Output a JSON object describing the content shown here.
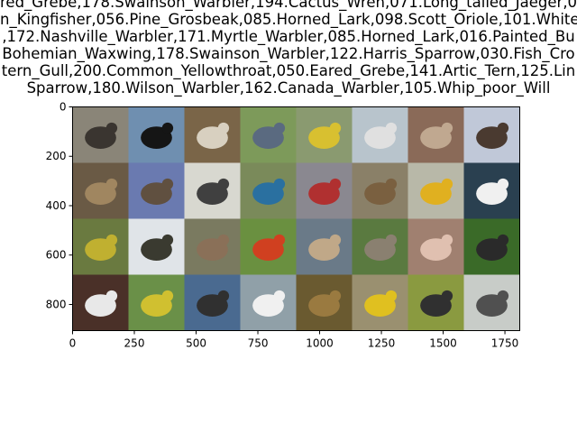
{
  "title_lines": [
    "red_Grebe,178.Swainson_Warbler,194.Cactus_Wren,071.Long_tailed_Jaeger,0",
    "n_Kingfisher,056.Pine_Grosbeak,085.Horned_Lark,098.Scott_Oriole,101.White",
    ",172.Nashville_Warbler,171.Myrtle_Warbler,085.Horned_Lark,016.Painted_Bu",
    "Bohemian_Waxwing,178.Swainson_Warbler,122.Harris_Sparrow,030.Fish_Cro",
    "tern_Gull,200.Common_Yellowthroat,050.Eared_Grebe,141.Artic_Tern,125.Lin",
    "Sparrow,180.Wilson_Warbler,162.Canada_Warbler,105.Whip_poor_Will"
  ],
  "chart_data": {
    "type": "image",
    "xlim": [
      0,
      1810
    ],
    "ylim": [
      906,
      0
    ],
    "x_ticks": [
      0,
      250,
      500,
      750,
      1000,
      1250,
      1500,
      1750
    ],
    "y_ticks": [
      0,
      200,
      400,
      600,
      800
    ],
    "grid": false,
    "grid_rows": 4,
    "grid_cols": 8,
    "tiles": [
      {
        "color": "#8a8578",
        "subject": "#3a3530"
      },
      {
        "color": "#6f8fb0",
        "subject": "#151515"
      },
      {
        "color": "#7a6548",
        "subject": "#d8d0c0"
      },
      {
        "color": "#7d9a5a",
        "subject": "#5a6a80"
      },
      {
        "color": "#8a9a70",
        "subject": "#d8c030"
      },
      {
        "color": "#b8c4cc",
        "subject": "#e0e0e0"
      },
      {
        "color": "#8a6a58",
        "subject": "#c0a890"
      },
      {
        "color": "#c0c8d8",
        "subject": "#4a3a30"
      },
      {
        "color": "#6a5a45",
        "subject": "#a08660"
      },
      {
        "color": "#6a7ab0",
        "subject": "#605040"
      },
      {
        "color": "#d8d8d0",
        "subject": "#404040"
      },
      {
        "color": "#7a8a5a",
        "subject": "#2a70a0"
      },
      {
        "color": "#8a8890",
        "subject": "#b03030"
      },
      {
        "color": "#8a8068",
        "subject": "#7a6040"
      },
      {
        "color": "#b8b8a8",
        "subject": "#e0b020"
      },
      {
        "color": "#2a4050",
        "subject": "#f0f0f0"
      },
      {
        "color": "#6a7a40",
        "subject": "#c0b030"
      },
      {
        "color": "#e0e4e8",
        "subject": "#3a3a30"
      },
      {
        "color": "#7a7a60",
        "subject": "#8a7058"
      },
      {
        "color": "#6a9040",
        "subject": "#d04020"
      },
      {
        "color": "#6a7a88",
        "subject": "#c0a888"
      },
      {
        "color": "#5a7a40",
        "subject": "#8a8070"
      },
      {
        "color": "#a08070",
        "subject": "#e0c0b0"
      },
      {
        "color": "#3a6a28",
        "subject": "#2a2a2a"
      },
      {
        "color": "#4a3028",
        "subject": "#e8e8e8"
      },
      {
        "color": "#6a9048",
        "subject": "#d0c030"
      },
      {
        "color": "#4a6a90",
        "subject": "#303030"
      },
      {
        "color": "#90a0a8",
        "subject": "#f0f0f0"
      },
      {
        "color": "#6a5a30",
        "subject": "#9a7a40"
      },
      {
        "color": "#9a9070",
        "subject": "#e0c020"
      },
      {
        "color": "#8a9a40",
        "subject": "#303030"
      },
      {
        "color": "#c8ccc8",
        "subject": "#505050"
      }
    ]
  }
}
